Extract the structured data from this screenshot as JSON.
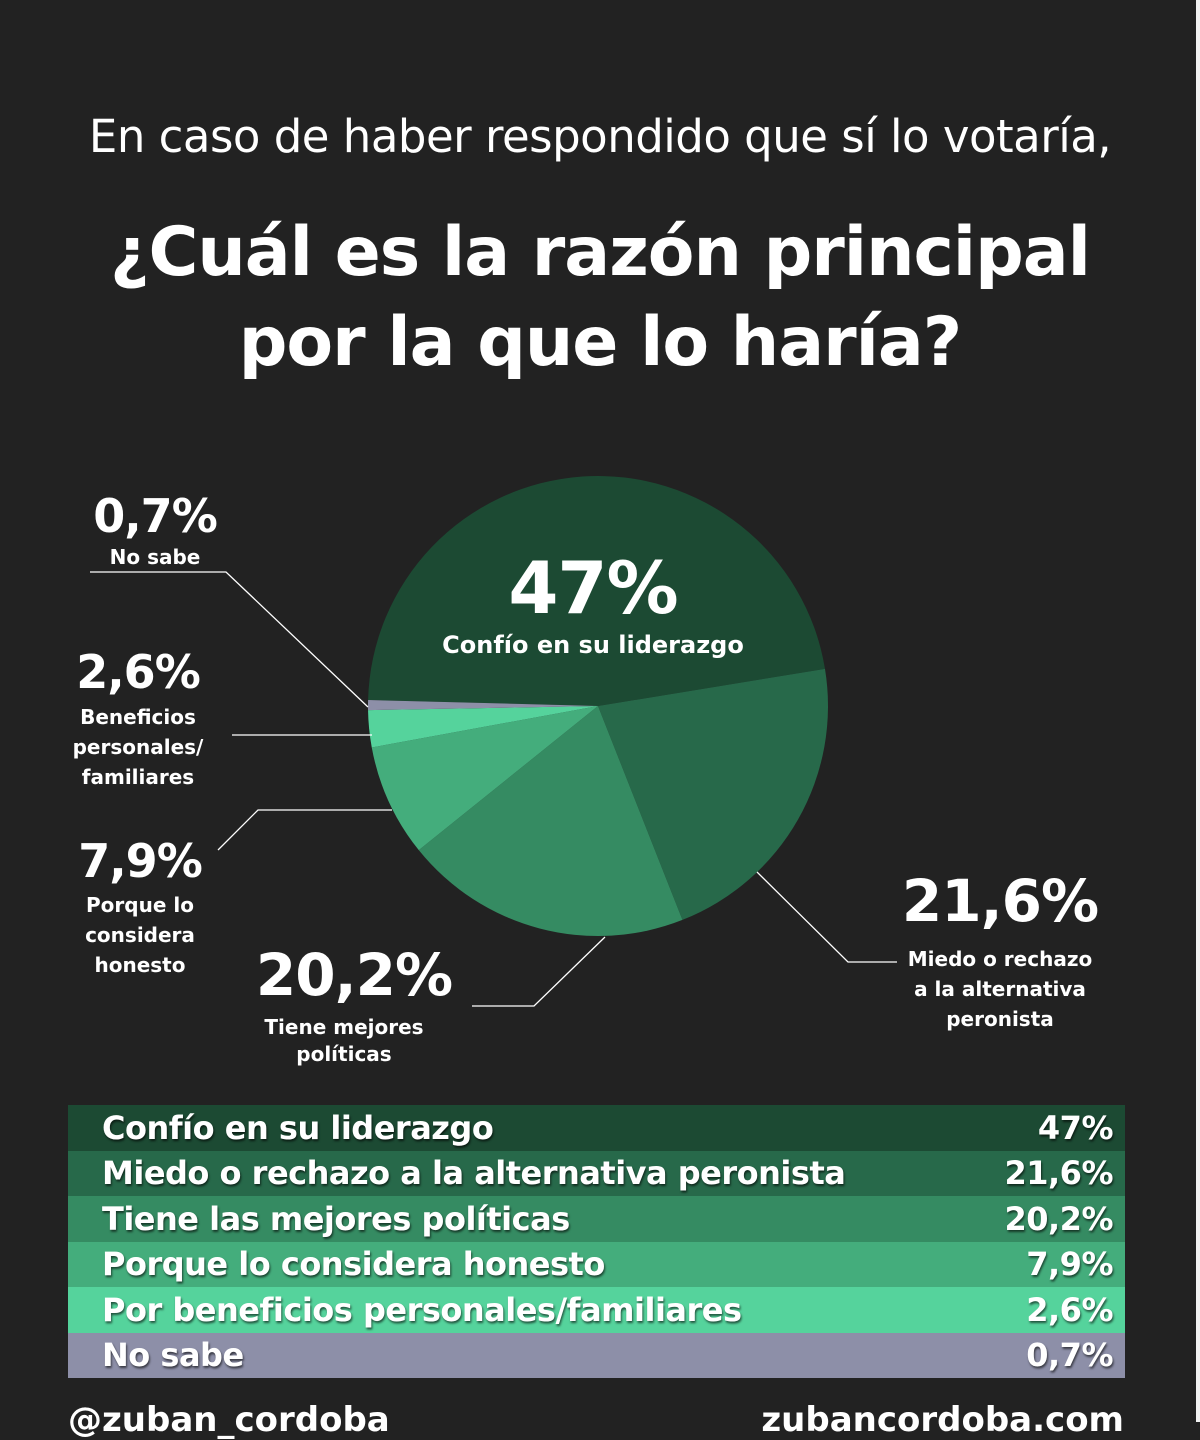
{
  "subtitle": "En caso de haber respondido que sí lo votaría,",
  "title_line1": "¿Cuál es la razón principal",
  "title_line2": "por la que lo haría?",
  "chart_data": {
    "type": "pie",
    "title": "¿Cuál es la razón principal por la que lo haría?",
    "slices": [
      {
        "label": "Confío en su liderazgo",
        "value": 47,
        "pct_label": "47%",
        "color": "#1c4a33"
      },
      {
        "label": "Miedo o rechazo a la alternativa peronista",
        "value": 21.6,
        "pct_label": "21,6%",
        "color": "#27694a"
      },
      {
        "label": "Tiene mejores políticas",
        "value": 20.2,
        "pct_label": "20,2%",
        "color": "#358b62"
      },
      {
        "label": "Porque lo considera honesto",
        "value": 7.9,
        "pct_label": "7,9%",
        "color": "#44ad7c"
      },
      {
        "label": "Beneficios personales/ familiares",
        "value": 2.6,
        "pct_label": "2,6%",
        "color": "#55d39c"
      },
      {
        "label": "No sabe",
        "value": 0.7,
        "pct_label": "0,7%",
        "color": "#8d8fa8"
      }
    ]
  },
  "callouts": {
    "s0": {
      "pct": "47%",
      "lines": [
        "Confío en su liderazgo"
      ]
    },
    "s1": {
      "pct": "21,6%",
      "lines": [
        "Miedo o rechazo",
        "a la alternativa",
        "peronista"
      ]
    },
    "s2": {
      "pct": "20,2%",
      "lines": [
        "Tiene mejores",
        "políticas"
      ]
    },
    "s3": {
      "pct": "7,9%",
      "lines": [
        "Porque lo",
        "considera",
        "honesto"
      ]
    },
    "s4": {
      "pct": "2,6%",
      "lines": [
        "Beneficios",
        "personales/",
        "familiares"
      ]
    },
    "s5": {
      "pct": "0,7%",
      "lines": [
        "No sabe"
      ]
    }
  },
  "table": [
    {
      "name": "Confío en su liderazgo",
      "value": "47%",
      "color": "#1c4a33"
    },
    {
      "name": "Miedo o rechazo a la alternativa peronista",
      "value": "21,6%",
      "color": "#27694a"
    },
    {
      "name": "Tiene las mejores políticas",
      "value": "20,2%",
      "color": "#358b62"
    },
    {
      "name": "Porque lo considera honesto",
      "value": "7,9%",
      "color": "#44ad7c"
    },
    {
      "name": "Por beneficios personales/familiares",
      "value": "2,6%",
      "color": "#55d39c"
    },
    {
      "name": "No sabe",
      "value": "0,7%",
      "color": "#8d8fa8"
    }
  ],
  "footer": {
    "left": "@zuban_cordoba",
    "right": "zubancordoba.com"
  }
}
